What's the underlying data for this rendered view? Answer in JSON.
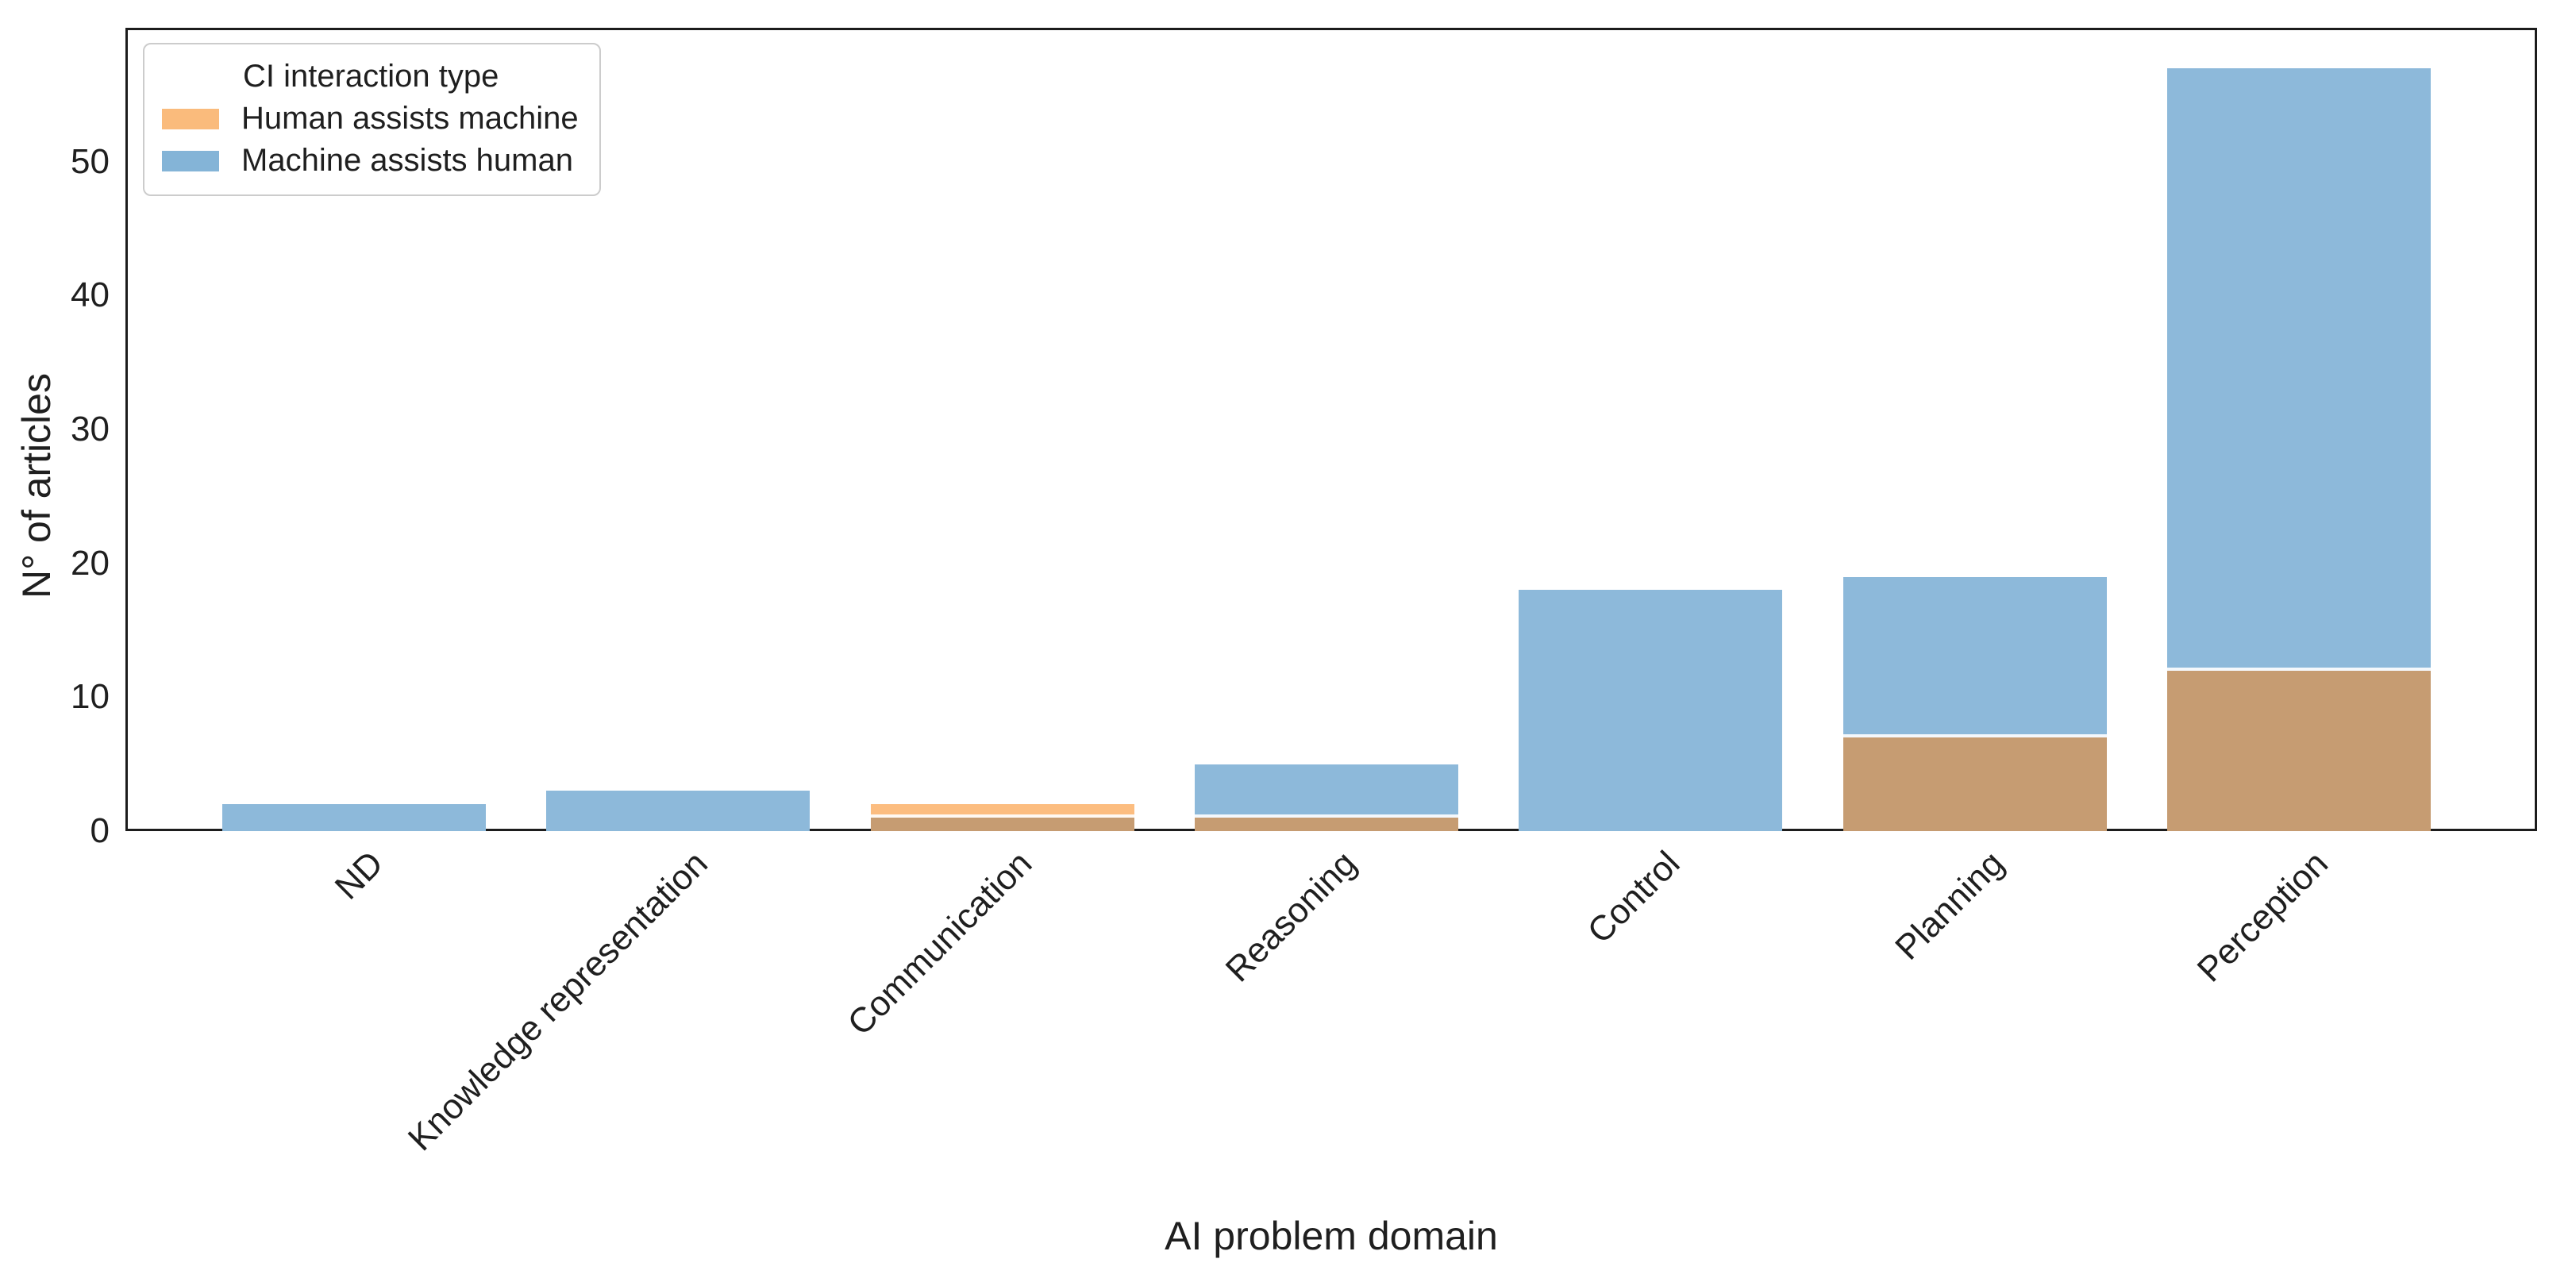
{
  "chart_data": {
    "type": "bar",
    "mode": "overlaid-translucent",
    "title": "",
    "xlabel": "AI problem domain",
    "ylabel": "N° of articles",
    "ylim": [
      0,
      60
    ],
    "yticks": [
      0,
      10,
      20,
      30,
      40,
      50
    ],
    "grid": "off",
    "categories": [
      "ND",
      "Knowledge representation",
      "Communication",
      "Reasoning",
      "Control",
      "Planning",
      "Perception"
    ],
    "series": [
      {
        "name": "Human assists machine",
        "color": "#FCBD80",
        "values": [
          0,
          0,
          2,
          1,
          0,
          7,
          12
        ]
      },
      {
        "name": "Machine assists human",
        "color": "#8DB9DA",
        "values": [
          2,
          3,
          1,
          5,
          18,
          19,
          57
        ]
      }
    ],
    "overlap_color": "#C69C72",
    "legend": {
      "title": "CI interaction type",
      "position": "upper left"
    }
  },
  "colors": {
    "background": "#ffffff",
    "bar_blue": "#8DB9DA",
    "bar_orange": "#FCBD80",
    "bar_overlap": "#C69C72",
    "legend_orange": "#FABB7C",
    "legend_blue": "#84B4D7",
    "spine": "#1c1c1c",
    "text": "#1f1f1f",
    "legend_border": "#cccccc"
  }
}
